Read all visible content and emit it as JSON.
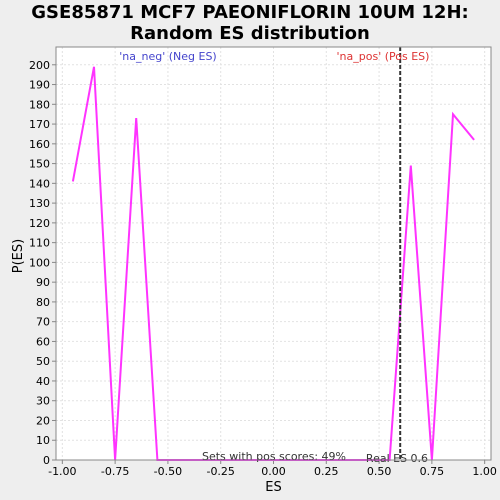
{
  "chart_data": {
    "type": "line",
    "title_line1": "GSE85871 MCF7 PAEONIFLORIN 10UM 12H:",
    "title_line2": "Random ES distribution",
    "xlabel": "ES",
    "ylabel": "P(ES)",
    "xlim": [
      -1.03,
      1.03
    ],
    "ylim": [
      0,
      209
    ],
    "x_ticks": [
      -1.0,
      -0.75,
      -0.5,
      -0.25,
      0.0,
      0.25,
      0.5,
      0.75,
      1.0
    ],
    "x_tick_labels": [
      "-1.00",
      "-0.75",
      "-0.50",
      "-0.25",
      "0.00",
      "0.25",
      "0.50",
      "0.75",
      "1.00"
    ],
    "y_ticks": [
      0,
      10,
      20,
      30,
      40,
      50,
      60,
      70,
      80,
      90,
      100,
      110,
      120,
      130,
      140,
      150,
      160,
      170,
      180,
      190,
      200
    ],
    "grid": true,
    "series": [
      {
        "color": "#ff33ff",
        "x": [
          -0.95,
          -0.85,
          -0.75,
          -0.65,
          -0.55,
          -0.45,
          -0.35,
          -0.25,
          -0.15,
          -0.05,
          0.05,
          0.15,
          0.25,
          0.35,
          0.45,
          0.55,
          0.65,
          0.75,
          0.85,
          0.95
        ],
        "y": [
          141,
          199,
          0,
          173,
          0,
          0,
          0,
          0,
          0,
          0,
          0,
          0,
          0,
          0,
          0,
          0,
          149,
          0,
          175,
          162
        ]
      }
    ],
    "real_es": 0.6,
    "real_es_label": "Real ES 0.6",
    "neg_label": "'na_neg' (Neg ES)",
    "pos_label": "'na_pos' (Pos ES)",
    "summary_label": "Sets with pos scores: 49%",
    "colors": {
      "neg": "#4444cc",
      "pos": "#dd3333",
      "line": "#ff33ff",
      "real_es_line": "#333333"
    }
  }
}
